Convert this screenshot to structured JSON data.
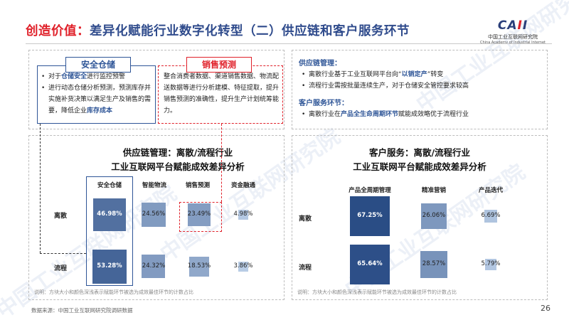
{
  "title": {
    "red": "创造价值：",
    "main": "差异化赋能行业数字化转型（二）供应链和客户服务环节"
  },
  "logo": {
    "mark_a": "CA",
    "mark_b": "I",
    "mark_c": "I",
    "cn": "中国工业互联网研究院",
    "en": "China Academy of Industrial Internet"
  },
  "watermark": "中国工业互联网研究院",
  "safe_storage": {
    "tag": "安全仓储",
    "b1_pre": "对于",
    "b1_hl": "仓储安全",
    "b1_post": "进行监控预警",
    "b2_pre": "进行动态仓储分析预测，预测库存并实施补货决策以满足生产及销售的需要，降低企业",
    "b2_hl": "库存成本"
  },
  "sales_forecast": {
    "tag": "销售预测",
    "text": "整合消费者数据、渠道销售数据、物流配送数据等进行分析建模、特征提取，提升销售预测的准确性，提升生产计划统筹能力。"
  },
  "right_text": {
    "supply_head": "供应链管理：",
    "s1_pre": "离散行业基于工业互联网平台向“",
    "s1_hl": "以销定产",
    "s1_post": "”转变",
    "s2": "流程行业需按批量连续生产，对于仓储安全管控要求较高",
    "cust_head": "客户服务环节：",
    "c1_pre": "离散行业在",
    "c1_hl": "产品全生命周期环节",
    "c1_post": "赋能成效略优于流程行业"
  },
  "left_chart": {
    "title1": "供应链管理：离散/流程行业",
    "title2": "工业互联网平台赋能成效差异分析",
    "columns": [
      "安全仓储",
      "智能物流",
      "销售预测",
      "资金融通"
    ],
    "rows": [
      "离散",
      "流程"
    ],
    "values": [
      [
        "46.98%",
        "24.56%",
        "23.49%",
        "4.98%"
      ],
      [
        "53.28%",
        "24.32%",
        "18.53%",
        "3.86%"
      ]
    ],
    "note": "说明：方块大小和颜色深浅表示赋能环节被选为成效最佳环节的计数占比"
  },
  "right_chart": {
    "title1": "客户服务：离散/流程行业",
    "title2": "工业互联网平台赋能成效差异分析",
    "columns": [
      "产品全周期管理",
      "精准营销",
      "产品迭代"
    ],
    "rows": [
      "离散",
      "流程"
    ],
    "values": [
      [
        "67.25%",
        "26.06%",
        "6.69%"
      ],
      [
        "65.64%",
        "28.57%",
        "5.79%"
      ]
    ],
    "note": "说明：方块大小和颜色深浅表示赋能环节被选为成效最佳环节的计数占比"
  },
  "chart_data": [
    {
      "type": "heatmap",
      "title": "供应链管理：离散/流程行业 工业互联网平台赋能成效差异分析",
      "x": [
        "安全仓储",
        "智能物流",
        "销售预测",
        "资金融通"
      ],
      "y": [
        "离散",
        "流程"
      ],
      "values": [
        [
          46.98,
          24.56,
          23.49,
          4.98
        ],
        [
          53.28,
          24.32,
          18.53,
          3.86
        ]
      ]
    },
    {
      "type": "heatmap",
      "title": "客户服务：离散/流程行业 工业互联网平台赋能成效差异分析",
      "x": [
        "产品全周期管理",
        "精准营销",
        "产品迭代"
      ],
      "y": [
        "离散",
        "流程"
      ],
      "values": [
        [
          67.25,
          26.06,
          6.69
        ],
        [
          65.64,
          28.57,
          5.79
        ]
      ]
    }
  ],
  "source": "数据来源：中国工业互联网研究院调研数据",
  "page_number": "26",
  "colors": {
    "title_blue": "#2f4b8c",
    "title_red": "#e0212a",
    "dark_blue": "#2b4c86",
    "light_blue": "#a9c4ea"
  }
}
